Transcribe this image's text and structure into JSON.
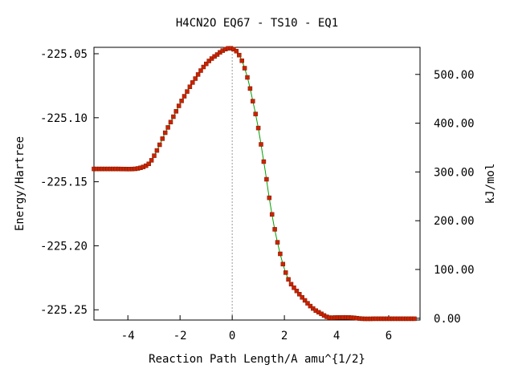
{
  "chart_data": {
    "type": "line",
    "title": "H4CN2O   EQ67 - TS10 - EQ1",
    "xlabel": "Reaction Path Length/A amu^{1/2}",
    "ylabel": "Energy/Hartree",
    "y2label": "kJ/mol",
    "xlim": [
      -5.3,
      7.2
    ],
    "ylim": [
      -225.258,
      -225.045
    ],
    "x_ticks": [
      -4,
      -2,
      0,
      2,
      4,
      6
    ],
    "x_tick_labels": [
      "-4",
      "-2",
      "0",
      "2",
      "4",
      "6"
    ],
    "y_ticks": [
      -225.25,
      -225.2,
      -225.15,
      -225.1,
      -225.05
    ],
    "y_tick_labels": [
      "-225.25",
      "-225.20",
      "-225.15",
      "-225.10",
      "-225.05"
    ],
    "y2_ticks": [
      0,
      100,
      200,
      300,
      400,
      500
    ],
    "y2_tick_labels": [
      "0.00",
      "100.00",
      "200.00",
      "300.00",
      "400.00",
      "500.00"
    ],
    "y2_zero_hartree": -225.2566,
    "y2_hartree_per_unit": 0.00038088,
    "transition_state_x": 0,
    "line_color": "#00a000",
    "marker_color": "#cc2200",
    "series": [
      {
        "x": [
          -5.3,
          -4.8,
          -4.3,
          -3.8,
          -3.5,
          -3.2,
          -3.0,
          -2.8,
          -2.6,
          -2.4,
          -2.2,
          -2.0,
          -1.8,
          -1.6,
          -1.4,
          -1.2,
          -1.0,
          -0.8,
          -0.6,
          -0.4,
          -0.2,
          0.0,
          0.2,
          0.4,
          0.6,
          0.8,
          1.0,
          1.2,
          1.3,
          1.4,
          1.6,
          1.8,
          2.0,
          2.2,
          2.5,
          2.8,
          3.1,
          3.4,
          3.7,
          4.0,
          4.5,
          5.0,
          5.5,
          6.0,
          6.5,
          7.0
        ],
        "y": [
          -225.14,
          -225.14,
          -225.14,
          -225.14,
          -225.139,
          -225.136,
          -225.13,
          -225.122,
          -225.113,
          -225.105,
          -225.097,
          -225.089,
          -225.082,
          -225.075,
          -225.069,
          -225.063,
          -225.058,
          -225.054,
          -225.051,
          -225.048,
          -225.046,
          -225.046,
          -225.049,
          -225.057,
          -225.07,
          -225.088,
          -225.108,
          -225.133,
          -225.146,
          -225.16,
          -225.184,
          -225.203,
          -225.218,
          -225.228,
          -225.236,
          -225.243,
          -225.249,
          -225.253,
          -225.256,
          -225.256,
          -225.256,
          -225.257,
          -225.257,
          -225.257,
          -225.257,
          -225.257
        ]
      }
    ]
  }
}
